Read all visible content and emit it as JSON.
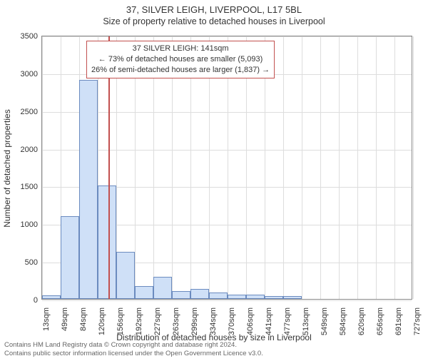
{
  "title": "37, SILVER LEIGH, LIVERPOOL, L17 5BL",
  "subtitle": "Size of property relative to detached houses in Liverpool",
  "xlabel": "Distribution of detached houses by size in Liverpool",
  "ylabel": "Number of detached properties",
  "chart": {
    "type": "histogram",
    "background_color": "#ffffff",
    "border_color": "#888888",
    "grid_color": "#dddddd",
    "bar_fill": "#cfe0f7",
    "bar_border": "#6b8bbf",
    "reference_line_color": "#c2504f",
    "reference_line_width": 2,
    "ylim": [
      0,
      3500
    ],
    "ytick_step": 500,
    "yticks": [
      0,
      500,
      1000,
      1500,
      2000,
      2500,
      3000,
      3500
    ],
    "xtick_labels": [
      "13sqm",
      "49sqm",
      "84sqm",
      "120sqm",
      "156sqm",
      "192sqm",
      "227sqm",
      "263sqm",
      "299sqm",
      "334sqm",
      "370sqm",
      "406sqm",
      "441sqm",
      "477sqm",
      "513sqm",
      "549sqm",
      "584sqm",
      "620sqm",
      "656sqm",
      "691sqm",
      "727sqm"
    ],
    "bars": [
      50,
      1100,
      2900,
      1500,
      620,
      170,
      290,
      100,
      130,
      90,
      60,
      60,
      40,
      40,
      0,
      0,
      0,
      0,
      0,
      0
    ],
    "reference_sqm": 141,
    "x_min_sqm": 13,
    "x_max_sqm": 727,
    "bar_count": 20,
    "info_box": {
      "line1": "37 SILVER LEIGH: 141sqm",
      "line2": "← 73% of detached houses are smaller (5,093)",
      "line3": "26% of semi-detached houses are larger (1,837) →",
      "border_color": "#c2504f",
      "fontsize": 11
    },
    "title_fontsize": 13,
    "label_fontsize": 12,
    "tick_fontsize": 11
  },
  "attribution": {
    "line1": "Contains HM Land Registry data © Crown copyright and database right 2024.",
    "line2": "Contains public sector information licensed under the Open Government Licence v3.0."
  }
}
